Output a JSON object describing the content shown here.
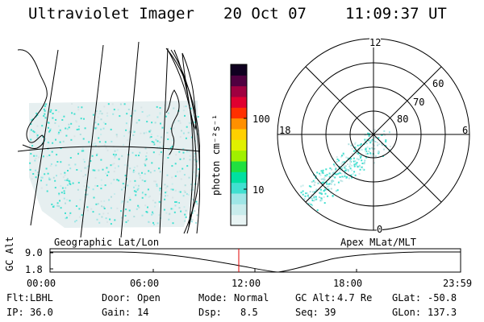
{
  "header": {
    "instrument": "Ultraviolet Imager",
    "date": "20 Oct 07",
    "time": "11:09:37 UT"
  },
  "colorbar": {
    "unit_label": "photon cm⁻²s⁻¹",
    "ticks": [
      "100",
      "10"
    ],
    "colors": [
      "#e8f4f4",
      "#c8ecec",
      "#9ee6e6",
      "#40e0d0",
      "#00e0a0",
      "#20e040",
      "#a0f000",
      "#e0f000",
      "#ffd000",
      "#ff9000",
      "#ff3000",
      "#e00030",
      "#a00040",
      "#500040",
      "#100020"
    ]
  },
  "left_map": {
    "label": "Geographic Lat/Lon"
  },
  "polar_plot": {
    "label": "Apex MLat/MLT",
    "mlt_labels": [
      "12",
      "18",
      "6",
      "0"
    ],
    "lat_labels": [
      "60",
      "70",
      "80"
    ]
  },
  "altitude_plot": {
    "ylabel": "GC Alt",
    "yticks": [
      "9.0",
      "1.8"
    ],
    "xticks": [
      "00:00",
      "06:00",
      "12:00",
      "18:00",
      "23:59"
    ],
    "marker_time": "11:09:37"
  },
  "info": {
    "row1": {
      "filter_label": "Flt:",
      "filter_value": "LBHL",
      "door_label": "Door:",
      "door_value": "Open",
      "mode_label": "Mode:",
      "mode_value": "Normal",
      "gcalt_label": "GC Alt:",
      "gcalt_value": "4.7 Re",
      "glat_label": "GLat:",
      "glat_value": "-50.8"
    },
    "row2": {
      "ip_label": "IP:",
      "ip_value": "36.0",
      "gain_label": "Gain:",
      "gain_value": "14",
      "dsp_label": "Dsp:",
      "dsp_value": "8.5",
      "seq_label": "Seq:",
      "seq_value": "39",
      "glon_label": "GLon:",
      "glon_value": "137.3"
    }
  }
}
